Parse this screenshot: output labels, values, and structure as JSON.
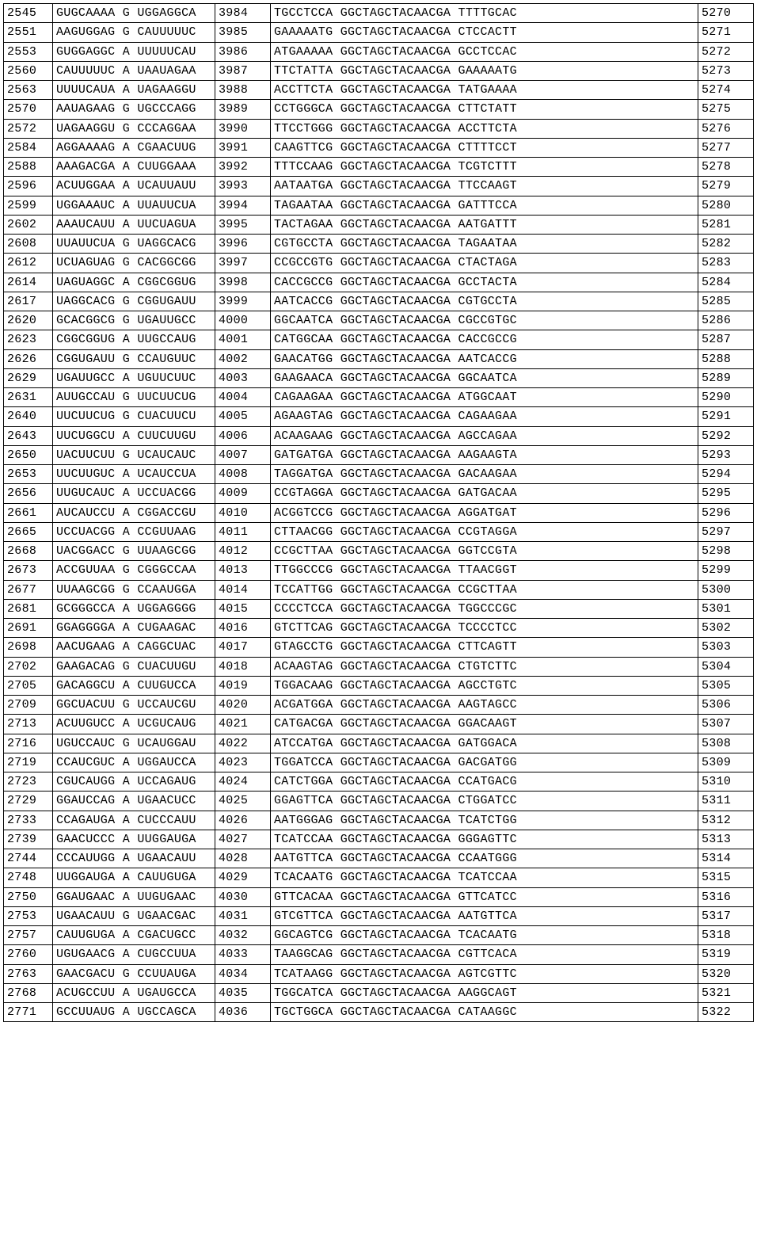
{
  "colors": {
    "border": "#000000",
    "background": "#ffffff",
    "text": "#000000"
  },
  "typography": {
    "font_family": "Courier New",
    "font_size_pt": 11
  },
  "table": {
    "type": "table",
    "column_widths_pct": [
      6.5,
      21.5,
      7.3,
      57.4,
      7.3
    ],
    "rows": [
      [
        "2545",
        "GUGCAAAA G UGGAGGCA",
        "3984",
        "TGCCTCCA GGCTAGCTACAACGA TTTTGCAC",
        "5270"
      ],
      [
        "2551",
        "AAGUGGAG G CAUUUUUC",
        "3985",
        "GAAAAATG GGCTAGCTACAACGA CTCCACTT",
        "5271"
      ],
      [
        "2553",
        "GUGGAGGC A UUUUUCAU",
        "3986",
        "ATGAAAAA GGCTAGCTACAACGA GCCTCCAC",
        "5272"
      ],
      [
        "2560",
        "CAUUUUUC A UAAUAGAA",
        "3987",
        "TTCTATTA GGCTAGCTACAACGA GAAAAATG",
        "5273"
      ],
      [
        "2563",
        "UUUUCAUA A UAGAAGGU",
        "3988",
        "ACCTTCTA GGCTAGCTACAACGA TATGAAAA",
        "5274"
      ],
      [
        "2570",
        "AAUAGAAG G UGCCCAGG",
        "3989",
        "CCTGGGCA GGCTAGCTACAACGA CTTCTATT",
        "5275"
      ],
      [
        "2572",
        "UAGAAGGU G CCCAGGAA",
        "3990",
        "TTCCTGGG GGCTAGCTACAACGA ACCTTCTA",
        "5276"
      ],
      [
        "2584",
        "AGGAAAAG A CGAACUUG",
        "3991",
        "CAAGTTCG GGCTAGCTACAACGA CTTTTCCT",
        "5277"
      ],
      [
        "2588",
        "AAAGACGA A CUUGGAAA",
        "3992",
        "TTTCCAAG GGCTAGCTACAACGA TCGTCTTT",
        "5278"
      ],
      [
        "2596",
        "ACUUGGAA A UCAUUAUU",
        "3993",
        "AATAATGA GGCTAGCTACAACGA TTCCAAGT",
        "5279"
      ],
      [
        "2599",
        "UGGAAAUC A UUAUUCUA",
        "3994",
        "TAGAATAA GGCTAGCTACAACGA GATTTCCA",
        "5280"
      ],
      [
        "2602",
        "AAAUCAUU A UUCUAGUA",
        "3995",
        "TACTAGAA GGCTAGCTACAACGA AATGATTT",
        "5281"
      ],
      [
        "2608",
        "UUAUUCUA G UAGGCACG",
        "3996",
        "CGTGCCTA GGCTAGCTACAACGA TAGAATAA",
        "5282"
      ],
      [
        "2612",
        "UCUAGUAG G CACGGCGG",
        "3997",
        "CCGCCGTG GGCTAGCTACAACGA CTACTAGA",
        "5283"
      ],
      [
        "2614",
        "UAGUAGGC A CGGCGGUG",
        "3998",
        "CACCGCCG GGCTAGCTACAACGA GCCTACTA",
        "5284"
      ],
      [
        "2617",
        "UAGGCACG G CGGUGAUU",
        "3999",
        "AATCACCG GGCTAGCTACAACGA CGTGCCTA",
        "5285"
      ],
      [
        "2620",
        "GCACGGCG G UGAUUGCC",
        "4000",
        "GGCAATCA GGCTAGCTACAACGA CGCCGTGC",
        "5286"
      ],
      [
        "2623",
        "CGGCGGUG A UUGCCAUG",
        "4001",
        "CATGGCAA GGCTAGCTACAACGA CACCGCCG",
        "5287"
      ],
      [
        "2626",
        "CGGUGAUU G CCAUGUUC",
        "4002",
        "GAACATGG GGCTAGCTACAACGA AATCACCG",
        "5288"
      ],
      [
        "2629",
        "UGAUUGCC A UGUUCUUC",
        "4003",
        "GAAGAACA GGCTAGCTACAACGA GGCAATCA",
        "5289"
      ],
      [
        "2631",
        "AUUGCCAU G UUCUUCUG",
        "4004",
        "CAGAAGAA GGCTAGCTACAACGA ATGGCAAT",
        "5290"
      ],
      [
        "2640",
        "UUCUUCUG G CUACUUCU",
        "4005",
        "AGAAGTAG GGCTAGCTACAACGA CAGAAGAA",
        "5291"
      ],
      [
        "2643",
        "UUCUGGCU A CUUCUUGU",
        "4006",
        "ACAAGAAG GGCTAGCTACAACGA AGCCAGAA",
        "5292"
      ],
      [
        "2650",
        "UACUUCUU G UCAUCAUC",
        "4007",
        "GATGATGA GGCTAGCTACAACGA AAGAAGTA",
        "5293"
      ],
      [
        "2653",
        "UUCUUGUC A UCAUCCUA",
        "4008",
        "TAGGATGA GGCTAGCTACAACGA GACAAGAA",
        "5294"
      ],
      [
        "2656",
        "UUGUCAUC A UCCUACGG",
        "4009",
        "CCGTAGGA GGCTAGCTACAACGA GATGACAA",
        "5295"
      ],
      [
        "2661",
        "AUCAUCCU A CGGACCGU",
        "4010",
        "ACGGTCCG GGCTAGCTACAACGA AGGATGAT",
        "5296"
      ],
      [
        "2665",
        "UCCUACGG A CCGUUAAG",
        "4011",
        "CTTAACGG GGCTAGCTACAACGA CCGTAGGA",
        "5297"
      ],
      [
        "2668",
        "UACGGACC G UUAAGCGG",
        "4012",
        "CCGCTTAA GGCTAGCTACAACGA GGTCCGTA",
        "5298"
      ],
      [
        "2673",
        "ACCGUUAA G CGGGCCAA",
        "4013",
        "TTGGCCCG GGCTAGCTACAACGA TTAACGGT",
        "5299"
      ],
      [
        "2677",
        "UUAAGCGG G CCAAUGGA",
        "4014",
        "TCCATTGG GGCTAGCTACAACGA CCGCTTAA",
        "5300"
      ],
      [
        "2681",
        "GCGGGCCA A UGGAGGGG",
        "4015",
        "CCCCTCCA GGCTAGCTACAACGA TGGCCCGC",
        "5301"
      ],
      [
        "2691",
        "GGAGGGGA A CUGAAGAC",
        "4016",
        "GTCTTCAG GGCTAGCTACAACGA TCCCCTCC",
        "5302"
      ],
      [
        "2698",
        "AACUGAAG A CAGGCUAC",
        "4017",
        "GTAGCCTG GGCTAGCTACAACGA CTTCAGTT",
        "5303"
      ],
      [
        "2702",
        "GAAGACAG G CUACUUGU",
        "4018",
        "ACAAGTAG GGCTAGCTACAACGA CTGTCTTC",
        "5304"
      ],
      [
        "2705",
        "GACAGGCU A CUUGUCCA",
        "4019",
        "TGGACAAG GGCTAGCTACAACGA AGCCTGTC",
        "5305"
      ],
      [
        "2709",
        "GGCUACUU G UCCAUCGU",
        "4020",
        "ACGATGGA GGCTAGCTACAACGA AAGTAGCC",
        "5306"
      ],
      [
        "2713",
        "ACUUGUCC A UCGUCAUG",
        "4021",
        "CATGACGA GGCTAGCTACAACGA GGACAAGT",
        "5307"
      ],
      [
        "2716",
        "UGUCCAUC G UCAUGGAU",
        "4022",
        "ATCCATGA GGCTAGCTACAACGA GATGGACA",
        "5308"
      ],
      [
        "2719",
        "CCAUCGUC A UGGAUCCA",
        "4023",
        "TGGATCCA GGCTAGCTACAACGA GACGATGG",
        "5309"
      ],
      [
        "2723",
        "CGUCAUGG A UCCAGAUG",
        "4024",
        "CATCTGGA GGCTAGCTACAACGA CCATGACG",
        "5310"
      ],
      [
        "2729",
        "GGAUCCAG A UGAACUCC",
        "4025",
        "GGAGTTCA GGCTAGCTACAACGA CTGGATCC",
        "5311"
      ],
      [
        "2733",
        "CCAGAUGA A CUCCCAUU",
        "4026",
        "AATGGGAG GGCTAGCTACAACGA TCATCTGG",
        "5312"
      ],
      [
        "2739",
        "GAACUCCC A UUGGAUGA",
        "4027",
        "TCATCCAA GGCTAGCTACAACGA GGGAGTTC",
        "5313"
      ],
      [
        "2744",
        "CCCAUUGG A UGAACAUU",
        "4028",
        "AATGTTCA GGCTAGCTACAACGA CCAATGGG",
        "5314"
      ],
      [
        "2748",
        "UUGGAUGA A CAUUGUGA",
        "4029",
        "TCACAATG GGCTAGCTACAACGA TCATCCAA",
        "5315"
      ],
      [
        "2750",
        "GGAUGAAC A UUGUGAAC",
        "4030",
        "GTTCACAA GGCTAGCTACAACGA GTTCATCC",
        "5316"
      ],
      [
        "2753",
        "UGAACAUU G UGAACGAC",
        "4031",
        "GTCGTTCA GGCTAGCTACAACGA AATGTTCA",
        "5317"
      ],
      [
        "2757",
        "CAUUGUGA A CGACUGCC",
        "4032",
        "GGCAGTCG GGCTAGCTACAACGA TCACAATG",
        "5318"
      ],
      [
        "2760",
        "UGUGAACG A CUGCCUUA",
        "4033",
        "TAAGGCAG GGCTAGCTACAACGA CGTTCACA",
        "5319"
      ],
      [
        "2763",
        "GAACGACU G CCUUAUGA",
        "4034",
        "TCATAAGG GGCTAGCTACAACGA AGTCGTTC",
        "5320"
      ],
      [
        "2768",
        "ACUGCCUU A UGAUGCCA",
        "4035",
        "TGGCATCA GGCTAGCTACAACGA AAGGCAGT",
        "5321"
      ],
      [
        "2771",
        "GCCUUAUG A UGCCAGCA",
        "4036",
        "TGCTGGCA GGCTAGCTACAACGA CATAAGGC",
        "5322"
      ]
    ]
  }
}
